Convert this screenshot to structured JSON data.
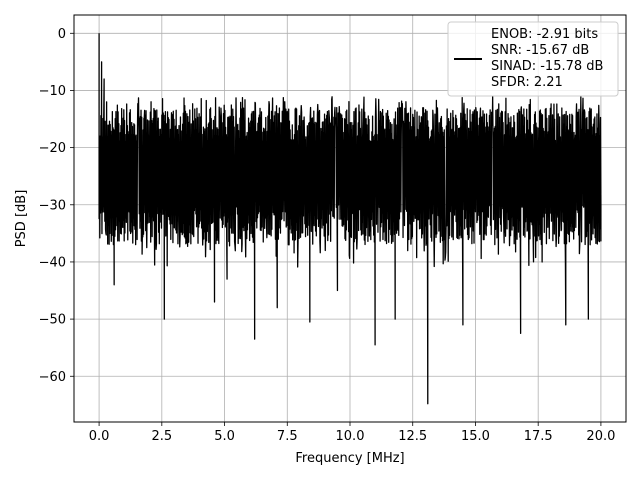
{
  "chart_data": {
    "type": "line",
    "title": "",
    "xlabel": "Frequency [MHz]",
    "ylabel": "PSD [dB]",
    "xlim": [
      -1.0,
      21.0
    ],
    "ylim": [
      -68.0,
      3.2
    ],
    "xticks": [
      0.0,
      2.5,
      5.0,
      7.5,
      10.0,
      12.5,
      15.0,
      17.5,
      20.0
    ],
    "xtick_labels": [
      "0.0",
      "2.5",
      "5.0",
      "7.5",
      "10.0",
      "12.5",
      "15.0",
      "17.5",
      "20.0"
    ],
    "yticks": [
      0,
      -10,
      -20,
      -30,
      -40,
      -50,
      -60
    ],
    "ytick_labels": [
      "0",
      "−10",
      "−20",
      "−30",
      "−40",
      "−50",
      "−60"
    ],
    "grid": true,
    "legend_position": "top-right",
    "legend_lines": [
      "ENOB: -2.91 bits",
      "SNR: -15.67 dB",
      "SINAD: -15.78 dB",
      "SFDR: 2.21"
    ],
    "line_color": "#000000",
    "grid_color": "#b0b0b0",
    "series": [
      {
        "noise_band_db": [
          -33.0,
          -15.0
        ],
        "x": [
          0.0,
          0.05,
          0.1,
          0.15,
          0.2,
          0.25,
          0.3,
          0.45,
          0.6,
          1.3,
          2.6,
          4.6,
          5.1,
          6.2,
          7.1,
          8.4,
          9.5,
          11.0,
          11.8,
          13.1,
          14.5,
          16.8,
          18.6,
          19.5,
          20.0
        ],
        "y": [
          0.0,
          -25.0,
          -5.0,
          -30.0,
          -8.0,
          -27.0,
          -12.0,
          -30.0,
          -44.0,
          -31.0,
          -50.0,
          -47.0,
          -43.0,
          -53.5,
          -48.0,
          -50.5,
          -45.0,
          -54.5,
          -50.0,
          -64.8,
          -51.0,
          -52.5,
          -51.0,
          -50.0,
          -30.0
        ]
      }
    ]
  }
}
